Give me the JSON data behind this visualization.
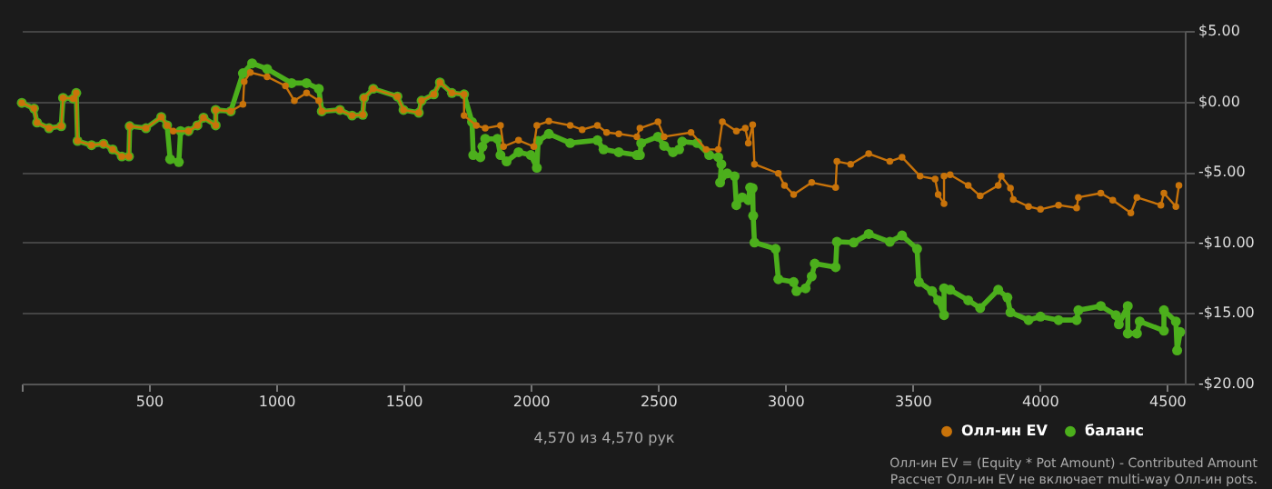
{
  "chart_data": {
    "type": "line",
    "xlabel": "4,570 из 4,570 рук",
    "annotations": [
      "Олл-ин EV = (Equity * Pot Amount) - Contributed Amount",
      "Рассчет Олл-ин EV не включает multi-way Олл-ин pots."
    ],
    "xlim": [
      0,
      4570
    ],
    "xticks": [
      {
        "value": 0,
        "label": null
      },
      500,
      1000,
      1500,
      2000,
      2500,
      3000,
      3500,
      4000,
      4500
    ],
    "ylim": [
      -20,
      5
    ],
    "yticks": [
      {
        "value": 5,
        "label": "$5.00"
      },
      {
        "value": 0,
        "label": "$0.00"
      },
      {
        "value": -5,
        "label": "-$5.00"
      },
      {
        "value": -10,
        "label": "-$10.00"
      },
      {
        "value": -15,
        "label": "-$15.00"
      },
      {
        "value": -20,
        "label": "-$20.00"
      }
    ],
    "grid": "y",
    "legend": "bottom right",
    "marker": "circle",
    "line_style": "solid",
    "series": [
      {
        "name": "Олл-ин EV",
        "color": "#c8730a",
        "x": [
          0,
          48,
          60,
          107,
          155,
          162,
          202,
          214,
          219,
          274,
          321,
          357,
          393,
          421,
          424,
          488,
          548,
          571,
          595,
          655,
          690,
          714,
          762,
          762,
          821,
          869,
          874,
          898,
          964,
          1036,
          1071,
          1119,
          1167,
          1179,
          1250,
          1298,
          1340,
          1345,
          1381,
          1476,
          1500,
          1560,
          1571,
          1619,
          1643,
          1690,
          1738,
          1738,
          1786,
          1821,
          1881,
          1893,
          1952,
          2012,
          2024,
          2071,
          2155,
          2202,
          2262,
          2298,
          2346,
          2417,
          2429,
          2500,
          2524,
          2630,
          2689,
          2737,
          2753,
          2808,
          2843,
          2855,
          2872,
          2879,
          2973,
          2997,
          3033,
          3104,
          3198,
          3203,
          3257,
          3328,
          3411,
          3459,
          3530,
          3589,
          3601,
          3624,
          3624,
          3648,
          3719,
          3766,
          3837,
          3849,
          3885,
          3896,
          3956,
          4003,
          4074,
          4145,
          4152,
          4240,
          4287,
          4358,
          4382,
          4476,
          4488,
          4535,
          4547
        ],
        "values": [
          -0.1,
          -0.5,
          -1.5,
          -1.9,
          -1.75,
          0.25,
          0.2,
          0.6,
          -2.8,
          -3.1,
          -3.0,
          -3.4,
          -3.9,
          -3.9,
          -1.75,
          -1.9,
          -1.1,
          -1.7,
          -2.1,
          -2.1,
          -1.7,
          -1.15,
          -1.7,
          -0.6,
          -0.7,
          -0.2,
          1.4,
          2.05,
          1.75,
          1.1,
          0.05,
          0.6,
          0.05,
          -0.7,
          -0.6,
          -1.0,
          -0.95,
          0.25,
          0.9,
          0.35,
          -0.6,
          -0.8,
          0.05,
          0.5,
          1.35,
          0.6,
          0.5,
          -1.0,
          -1.7,
          -1.9,
          -1.7,
          -3.2,
          -2.75,
          -3.2,
          -1.7,
          -1.4,
          -1.7,
          -2.0,
          -1.7,
          -2.2,
          -2.3,
          -2.5,
          -1.9,
          -1.45,
          -2.5,
          -2.2,
          -3.4,
          -3.4,
          -1.45,
          -2.1,
          -1.9,
          -2.95,
          -1.65,
          -4.45,
          -5.1,
          -5.95,
          -6.6,
          -5.75,
          -6.1,
          -4.25,
          -4.45,
          -3.7,
          -4.25,
          -3.95,
          -5.3,
          -5.5,
          -6.6,
          -7.25,
          -5.3,
          -5.2,
          -5.95,
          -6.7,
          -5.95,
          -5.3,
          -6.15,
          -6.95,
          -7.45,
          -7.65,
          -7.35,
          -7.55,
          -6.8,
          -6.5,
          -7.0,
          -7.9,
          -6.8,
          -7.35,
          -6.5,
          -7.45,
          -5.95
        ]
      },
      {
        "name": "баланс",
        "color": "#4caf1c",
        "x": [
          0,
          48,
          60,
          107,
          155,
          162,
          202,
          214,
          219,
          274,
          321,
          357,
          393,
          421,
          424,
          488,
          548,
          571,
          583,
          617,
          624,
          655,
          690,
          714,
          762,
          762,
          821,
          869,
          905,
          964,
          1060,
          1119,
          1167,
          1179,
          1250,
          1298,
          1340,
          1345,
          1381,
          1476,
          1500,
          1560,
          1571,
          1619,
          1643,
          1690,
          1738,
          1769,
          1774,
          1802,
          1810,
          1821,
          1869,
          1881,
          1905,
          1952,
          2000,
          2024,
          2029,
          2071,
          2155,
          2262,
          2286,
          2346,
          2417,
          2429,
          2434,
          2500,
          2524,
          2559,
          2583,
          2595,
          2654,
          2701,
          2737,
          2749,
          2744,
          2772,
          2801,
          2808,
          2831,
          2855,
          2862,
          2872,
          2874,
          2879,
          2962,
          2973,
          3033,
          3044,
          3080,
          3104,
          3116,
          3198,
          3203,
          3269,
          3328,
          3411,
          3459,
          3518,
          3525,
          3577,
          3601,
          3624,
          3624,
          3648,
          3719,
          3766,
          3837,
          3873,
          3885,
          3956,
          4003,
          4074,
          4145,
          4152,
          4240,
          4299,
          4311,
          4346,
          4346,
          4382,
          4393,
          4488,
          4488,
          4535,
          4540,
          4552
        ],
        "values": [
          -0.1,
          -0.5,
          -1.5,
          -1.9,
          -1.75,
          0.25,
          0.2,
          0.6,
          -2.8,
          -3.1,
          -3.0,
          -3.4,
          -3.9,
          -3.9,
          -1.75,
          -1.9,
          -1.1,
          -1.7,
          -4.1,
          -4.3,
          -2.1,
          -2.1,
          -1.7,
          -1.15,
          -1.7,
          -0.6,
          -0.7,
          2.0,
          2.7,
          2.3,
          1.3,
          1.3,
          0.9,
          -0.7,
          -0.6,
          -1.0,
          -0.95,
          0.25,
          0.9,
          0.35,
          -0.6,
          -0.8,
          0.05,
          0.5,
          1.35,
          0.6,
          0.5,
          -1.45,
          -3.8,
          -3.95,
          -3.2,
          -2.65,
          -2.65,
          -3.8,
          -4.25,
          -3.6,
          -3.8,
          -4.7,
          -2.8,
          -2.3,
          -2.95,
          -2.75,
          -3.4,
          -3.6,
          -3.8,
          -3.8,
          -2.95,
          -2.5,
          -3.15,
          -3.6,
          -3.4,
          -2.85,
          -2.95,
          -3.8,
          -3.95,
          -4.45,
          -5.75,
          -5.1,
          -5.3,
          -7.35,
          -6.8,
          -7.0,
          -6.1,
          -6.15,
          -8.1,
          -10.0,
          -10.45,
          -12.6,
          -12.8,
          -13.45,
          -13.25,
          -12.4,
          -11.5,
          -11.75,
          -9.95,
          -10.0,
          -9.4,
          -9.95,
          -9.5,
          -10.45,
          -12.8,
          -13.45,
          -14.1,
          -15.15,
          -13.25,
          -13.35,
          -14.1,
          -14.65,
          -13.35,
          -13.9,
          -14.95,
          -15.5,
          -15.25,
          -15.5,
          -15.5,
          -14.8,
          -14.5,
          -15.15,
          -15.8,
          -14.5,
          -16.45,
          -16.45,
          -15.6,
          -16.25,
          -14.8,
          -15.6,
          -17.65,
          -16.35
        ]
      }
    ]
  }
}
